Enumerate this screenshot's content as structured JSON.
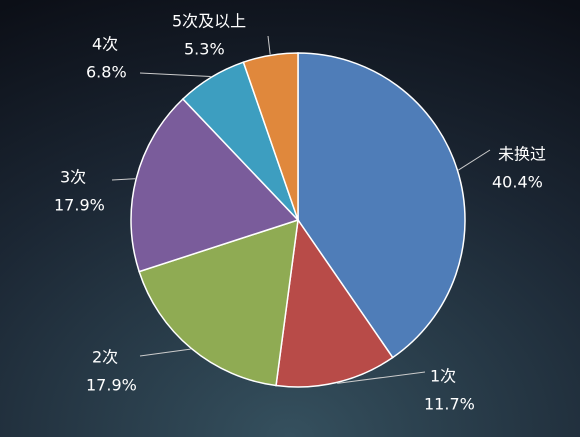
{
  "chart_data": {
    "type": "pie",
    "categories": [
      "未换过",
      "1次",
      "2次",
      "3次",
      "4次",
      "5次及以上"
    ],
    "values": [
      40.4,
      11.7,
      17.9,
      17.9,
      6.8,
      5.3
    ],
    "value_labels": [
      "40.4%",
      "11.7%",
      "17.9%",
      "17.9%",
      "6.8%",
      "5.3%"
    ],
    "colors": [
      "#4f7db8",
      "#b84b48",
      "#8fab53",
      "#7a5c9b",
      "#3d9ec0",
      "#e0883c"
    ]
  }
}
